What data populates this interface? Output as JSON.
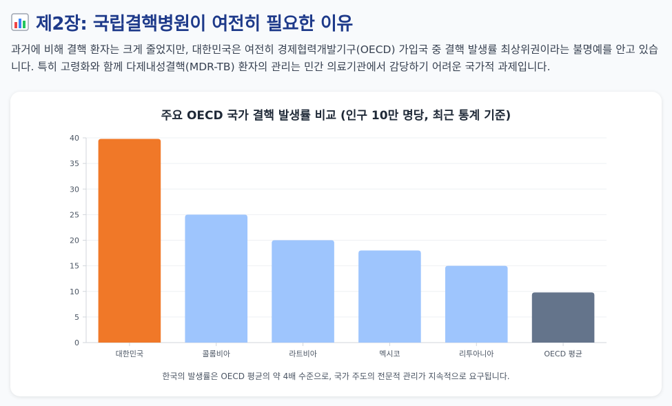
{
  "header": {
    "title": "제2장: 국립결핵병원이 여전히 필요한 이유",
    "description": "과거에 비해 결핵 환자는 크게 줄었지만, 대한민국은 여전히 경제협력개발기구(OECD) 가입국 중 결핵 발생률 최상위권이라는 불명예를 안고 있습니다. 특히 고령화와 함께 다제내성결핵(MDR-TB) 환자의 관리는 민간 의료기관에서 감당하기 어려운 국가적 과제입니다.",
    "icon": "bar-chart-icon"
  },
  "chart_note": "한국의 발생률은 OECD 평균의 약 4배 수준으로, 국가 주도의 전문적 관리가 지속적으로 요구됩니다.",
  "chart_data": {
    "type": "bar",
    "title": "주요 OECD 국가 결핵 발생률 비교 (인구 10만 명당, 최근 통계 기준)",
    "xlabel": "",
    "ylabel": "",
    "categories": [
      "대한민국",
      "콜롬비아",
      "라트비아",
      "멕시코",
      "리투아니아",
      "OECD 평균"
    ],
    "values": [
      39.8,
      25,
      20,
      18,
      15,
      9.8
    ],
    "bar_colors": [
      "#f07828",
      "#9ec5fd",
      "#9ec5fd",
      "#9ec5fd",
      "#9ec5fd",
      "#64748b"
    ],
    "ylim": [
      0,
      40
    ],
    "yticks": [
      0,
      5,
      10,
      15,
      20,
      25,
      30,
      35,
      40
    ],
    "grid": true,
    "legend": "none"
  }
}
